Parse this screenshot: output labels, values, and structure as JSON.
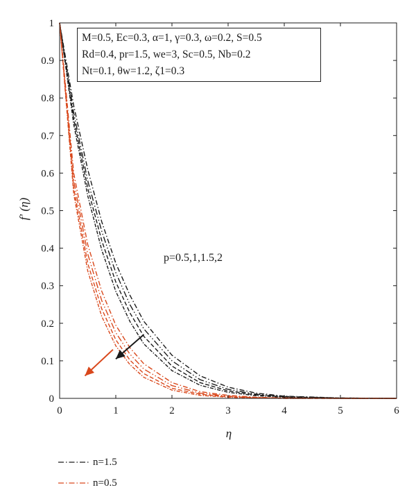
{
  "chart_data": {
    "type": "line",
    "xlabel": "η",
    "ylabel": "f' (η)",
    "xlim": [
      0,
      6
    ],
    "ylim": [
      0,
      1
    ],
    "xticks": [
      "0",
      "1",
      "2",
      "3",
      "4",
      "5",
      "6"
    ],
    "yticks": [
      "0",
      "0.1",
      "0.2",
      "0.3",
      "0.4",
      "0.5",
      "0.6",
      "0.7",
      "0.8",
      "0.9",
      "1"
    ],
    "x": [
      0,
      0.25,
      0.5,
      0.75,
      1,
      1.25,
      1.5,
      2,
      2.5,
      3,
      3.5,
      4,
      5,
      6
    ],
    "series_groups": [
      {
        "legend": "n=1.5",
        "color": "#1a1a1a",
        "series": [
          {
            "values": [
              1,
              0.78,
              0.61,
              0.47,
              0.36,
              0.275,
              0.205,
              0.115,
              0.06,
              0.03,
              0.014,
              0.006,
              0.001,
              0
            ]
          },
          {
            "values": [
              1,
              0.76,
              0.58,
              0.445,
              0.335,
              0.25,
              0.185,
              0.1,
              0.05,
              0.024,
              0.011,
              0.005,
              0.001,
              0
            ]
          },
          {
            "values": [
              1,
              0.745,
              0.56,
              0.42,
              0.31,
              0.228,
              0.165,
              0.086,
              0.042,
              0.02,
              0.009,
              0.004,
              0.001,
              0
            ]
          },
          {
            "values": [
              1,
              0.73,
              0.54,
              0.395,
              0.285,
              0.205,
              0.145,
              0.074,
              0.035,
              0.016,
              0.007,
              0.003,
              0,
              0
            ]
          }
        ]
      },
      {
        "legend": "n=0.5",
        "color": "#d9481c",
        "series": [
          {
            "values": [
              1,
              0.6,
              0.41,
              0.285,
              0.195,
              0.135,
              0.092,
              0.042,
              0.018,
              0.008,
              0.003,
              0.001,
              0,
              0
            ]
          },
          {
            "values": [
              1,
              0.58,
              0.385,
              0.26,
              0.175,
              0.118,
              0.078,
              0.034,
              0.014,
              0.006,
              0.002,
              0.001,
              0,
              0
            ]
          },
          {
            "values": [
              1,
              0.56,
              0.36,
              0.238,
              0.156,
              0.102,
              0.066,
              0.027,
              0.011,
              0.004,
              0.002,
              0,
              0,
              0
            ]
          },
          {
            "values": [
              1,
              0.545,
              0.34,
              0.218,
              0.14,
              0.09,
              0.056,
              0.022,
              0.008,
              0.003,
              0.001,
              0,
              0,
              0
            ]
          }
        ]
      }
    ],
    "annotation": "p=0.5,1,1.5,2",
    "params": [
      "M=0.5, Ec=0.3, α=1, γ=0.3, ω=0.2, S=0.5",
      "Rd=0.4, pr=1.5, we=3, Sc=0.5, Nb=0.2",
      "Nt=0.1, θw=1.2, ζ1=0.3"
    ],
    "arrows": [
      {
        "color": "#1a1a1a",
        "from": [
          1.5,
          0.17
        ],
        "to": [
          1.0,
          0.105
        ]
      },
      {
        "color": "#d9481c",
        "from": [
          0.95,
          0.13
        ],
        "to": [
          0.45,
          0.06
        ]
      }
    ]
  }
}
